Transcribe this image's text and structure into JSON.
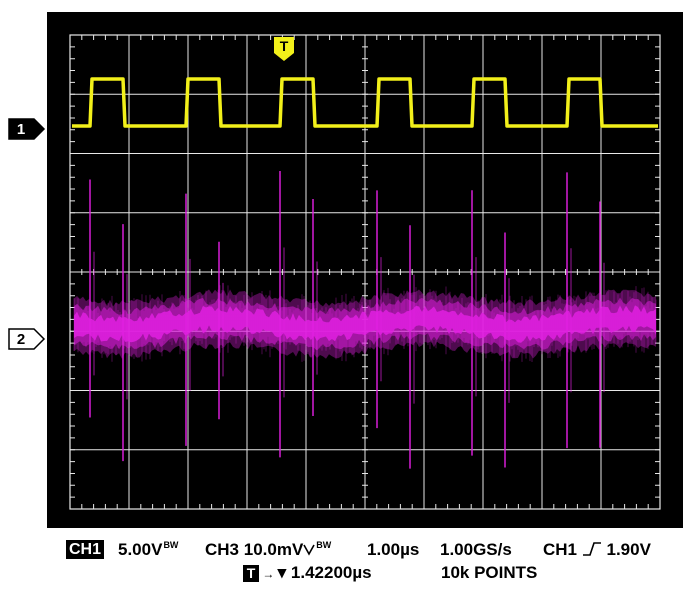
{
  "markers": {
    "channel1": "1",
    "channel2": "2",
    "trigger": "T"
  },
  "colors": {
    "ch1_trace": "#f2f01a",
    "ch3_trace": "#e020e0",
    "screen_bg": "#000000",
    "grid": "#e8e8e8"
  },
  "waveforms": {
    "ch1_pulse_count": 6,
    "ch1_duty": 0.35
  },
  "readout": {
    "ch1_label": "CH1",
    "ch1_scale": "5.00V",
    "ch1_bw": "BW",
    "ch3_label": "CH3",
    "ch3_scale": "10.0mV",
    "ch3_bw": "BW",
    "timebase": "1.00µs",
    "sample_rate": "1.00GS/s",
    "trigger_source": "CH1",
    "trigger_level": "1.90V",
    "trigger_icon_label": "T",
    "trigger_position": "▾ 1.42200µs",
    "record_length": "10k POINTS"
  }
}
